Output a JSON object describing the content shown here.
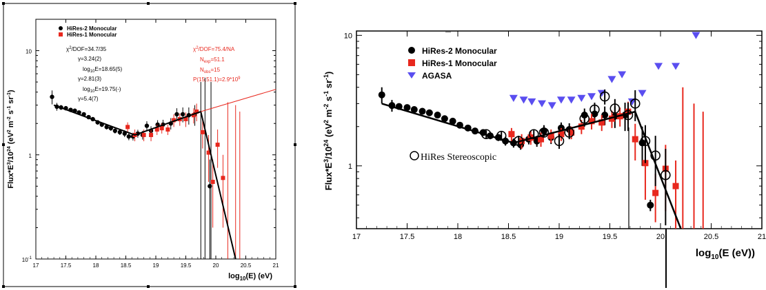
{
  "chart_data": [
    {
      "type": "scatter",
      "xlabel": "log10(E) (eV)",
      "ylabel": "Flux*E^3/10^24 (eV^2 m^-2 s^-1 sr^-1)",
      "x_log": false,
      "y_log": true,
      "xlim": [
        17,
        21
      ],
      "ylim": [
        0.1,
        20
      ],
      "x_ticks": [
        "17",
        "17.5",
        "18",
        "18.5",
        "19",
        "19.5",
        "20",
        "20.5",
        "21"
      ],
      "y_ticks": [
        {
          "v": 0.1,
          "label": "10^-1"
        },
        {
          "v": 1,
          "label": "1"
        },
        {
          "v": 10,
          "label": "10"
        }
      ],
      "legend": {
        "placement": "top-left",
        "entries": [
          "HiRes-2 Monocular",
          "HiRes-1 Monocular"
        ]
      },
      "annotations_black": [
        "χ²/DOF=34.7/35",
        "γ=3.24(2)",
        "log10E=18.65(5)",
        "γ=2.81(3)",
        "log10E=19.75(-)",
        "γ=5.4(7)"
      ],
      "annotations_red": [
        "χ²/DOF=75.4/NA",
        "Nexp=51.1",
        "Nobs=15",
        "P(15,51.1)=2.9*10^9"
      ],
      "series": [
        {
          "name": "HiRes-2 Monocular",
          "color": "#000000",
          "marker": "circle",
          "points": [
            [
              17.27,
              3.6,
              0.55
            ],
            [
              17.35,
              2.9,
              0.25
            ],
            [
              17.42,
              2.85,
              0.15
            ],
            [
              17.5,
              2.8,
              0.12
            ],
            [
              17.58,
              2.7,
              0.1
            ],
            [
              17.65,
              2.65,
              0.1
            ],
            [
              17.72,
              2.55,
              0.1
            ],
            [
              17.8,
              2.45,
              0.1
            ],
            [
              17.88,
              2.3,
              0.1
            ],
            [
              17.95,
              2.2,
              0.1
            ],
            [
              18.03,
              2.05,
              0.1
            ],
            [
              18.1,
              1.95,
              0.1
            ],
            [
              18.18,
              1.85,
              0.1
            ],
            [
              18.25,
              1.8,
              0.1
            ],
            [
              18.32,
              1.7,
              0.1
            ],
            [
              18.4,
              1.65,
              0.1
            ],
            [
              18.48,
              1.6,
              0.12
            ],
            [
              18.55,
              1.5,
              0.12
            ],
            [
              18.62,
              1.5,
              0.13
            ],
            [
              18.7,
              1.6,
              0.14
            ],
            [
              18.78,
              1.55,
              0.15
            ],
            [
              18.85,
              1.9,
              0.2
            ],
            [
              18.92,
              1.7,
              0.18
            ],
            [
              19.03,
              1.95,
              0.2
            ],
            [
              19.12,
              1.95,
              0.22
            ],
            [
              19.25,
              2.0,
              0.25
            ],
            [
              19.35,
              2.45,
              0.35
            ],
            [
              19.45,
              2.45,
              0.4
            ],
            [
              19.55,
              2.4,
              0.45
            ],
            [
              19.65,
              2.45,
              0.55
            ],
            [
              19.9,
              0.5,
              0.4
            ]
          ],
          "upper_limit_stems": [
            [
              19.75,
              5.0
            ],
            [
              19.82,
              5.5
            ],
            [
              19.92,
              5.0
            ]
          ]
        },
        {
          "name": "HiRes-1 Monocular",
          "color": "#e8281e",
          "marker": "square",
          "points": [
            [
              18.53,
              1.85,
              0.2
            ],
            [
              18.65,
              1.55,
              0.2
            ],
            [
              18.8,
              1.55,
              0.2
            ],
            [
              18.92,
              1.55,
              0.2
            ],
            [
              19.02,
              1.75,
              0.2
            ],
            [
              19.1,
              1.8,
              0.2
            ],
            [
              19.2,
              1.75,
              0.2
            ],
            [
              19.3,
              2.15,
              0.3
            ],
            [
              19.4,
              2.2,
              0.3
            ],
            [
              19.5,
              2.2,
              0.35
            ],
            [
              19.63,
              2.4,
              0.4
            ],
            [
              19.68,
              2.6,
              0.5
            ],
            [
              19.78,
              1.65,
              0.5
            ],
            [
              19.88,
              1.05,
              0.5
            ],
            [
              19.95,
              0.55,
              0.35
            ],
            [
              20.03,
              1.25,
              0.5
            ],
            [
              20.12,
              0.6,
              0.4
            ]
          ],
          "upper_limit_stems": [
            [
              20.2,
              3.2
            ],
            [
              20.33,
              3.0
            ],
            [
              20.4,
              2.6
            ]
          ]
        },
        {
          "name": "Fit",
          "color": "#000000",
          "line": [
            [
              17.3,
              3.0
            ],
            [
              18.65,
              1.55
            ],
            [
              19.75,
              2.6
            ],
            [
              20.33,
              0.1
            ]
          ]
        },
        {
          "name": "Extrapolation",
          "color": "#e8281e",
          "line": [
            [
              19.75,
              2.6
            ],
            [
              21.0,
              4.25
            ]
          ]
        }
      ]
    },
    {
      "type": "scatter",
      "xlabel": "log10(E (eV))",
      "ylabel": "Flux*E^3/10^24 (eV^2 m^-2 s^-1 sr^-1)",
      "y_log": true,
      "xlim": [
        17,
        21
      ],
      "ylim": [
        0.33,
        10.8
      ],
      "x_ticks": [
        "17",
        "17.5",
        "18",
        "18.5",
        "19",
        "19.5",
        "20",
        "20.5",
        "21"
      ],
      "y_ticks": [
        {
          "v": 1,
          "label": "1"
        },
        {
          "v": 10,
          "label": "10"
        }
      ],
      "legend": {
        "placement": "top-left",
        "entries": [
          "HiRes-2 Monocular",
          "HiRes-1 Monocular",
          "AGASA"
        ]
      },
      "extra_legend": "HiRes Stereoscopic",
      "series": [
        {
          "name": "HiRes-2 Monocular",
          "color": "#000000",
          "marker": "circle",
          "points": [
            [
              17.25,
              3.5,
              0.5
            ],
            [
              17.35,
              2.9,
              0.3
            ],
            [
              17.42,
              2.85,
              0.15
            ],
            [
              17.5,
              2.8,
              0.12
            ],
            [
              17.57,
              2.7,
              0.1
            ],
            [
              17.65,
              2.62,
              0.1
            ],
            [
              17.72,
              2.55,
              0.1
            ],
            [
              17.8,
              2.45,
              0.1
            ],
            [
              17.87,
              2.3,
              0.1
            ],
            [
              17.95,
              2.2,
              0.1
            ],
            [
              18.02,
              2.05,
              0.1
            ],
            [
              18.1,
              1.95,
              0.1
            ],
            [
              18.17,
              1.85,
              0.1
            ],
            [
              18.25,
              1.8,
              0.1
            ],
            [
              18.32,
              1.7,
              0.1
            ],
            [
              18.4,
              1.65,
              0.1
            ],
            [
              18.47,
              1.55,
              0.12
            ],
            [
              18.55,
              1.5,
              0.12
            ],
            [
              18.62,
              1.45,
              0.12
            ],
            [
              18.7,
              1.6,
              0.14
            ],
            [
              18.78,
              1.55,
              0.15
            ],
            [
              18.85,
              1.85,
              0.2
            ],
            [
              18.92,
              1.65,
              0.18
            ],
            [
              19.02,
              1.95,
              0.2
            ],
            [
              19.1,
              1.9,
              0.22
            ],
            [
              19.25,
              2.45,
              0.3
            ],
            [
              19.35,
              2.5,
              0.35
            ],
            [
              19.45,
              2.45,
              0.4
            ],
            [
              19.55,
              2.4,
              0.45
            ],
            [
              19.65,
              2.45,
              0.6
            ],
            [
              19.82,
              1.5,
              0.5
            ],
            [
              19.9,
              0.5,
              0.05
            ]
          ]
        },
        {
          "name": "HiRes-1 Monocular",
          "color": "#e8281e",
          "marker": "square",
          "points": [
            [
              18.53,
              1.75,
              0.2
            ],
            [
              18.63,
              1.55,
              0.2
            ],
            [
              18.72,
              1.65,
              0.2
            ],
            [
              18.82,
              1.6,
              0.2
            ],
            [
              18.92,
              1.7,
              0.2
            ],
            [
              19.02,
              1.75,
              0.2
            ],
            [
              19.12,
              1.8,
              0.2
            ],
            [
              19.22,
              2.0,
              0.25
            ],
            [
              19.32,
              2.2,
              0.3
            ],
            [
              19.42,
              2.15,
              0.3
            ],
            [
              19.52,
              2.3,
              0.35
            ],
            [
              19.6,
              2.4,
              0.4
            ],
            [
              19.68,
              2.6,
              0.5
            ],
            [
              19.75,
              1.6,
              0.5
            ],
            [
              19.85,
              1.05,
              0.5
            ],
            [
              19.95,
              0.62,
              0.25
            ],
            [
              20.05,
              0.95,
              0.5
            ],
            [
              20.15,
              0.7,
              0.4
            ]
          ],
          "upper_limit_stems": [
            [
              20.22,
              4.0
            ],
            [
              20.33,
              3.0
            ],
            [
              20.42,
              2.6
            ]
          ]
        },
        {
          "name": "AGASA",
          "color": "#5a4ef0",
          "marker": "triangle-down",
          "points": [
            [
              18.55,
              3.3
            ],
            [
              18.65,
              3.2
            ],
            [
              18.73,
              3.1
            ],
            [
              18.83,
              3.0
            ],
            [
              18.93,
              2.9
            ],
            [
              19.02,
              3.2
            ],
            [
              19.12,
              3.2
            ],
            [
              19.22,
              3.3
            ],
            [
              19.32,
              3.4
            ],
            [
              19.42,
              3.6
            ],
            [
              19.52,
              4.6
            ],
            [
              19.62,
              5.0
            ],
            [
              19.72,
              3.1
            ],
            [
              19.82,
              3.6
            ],
            [
              19.98,
              5.8
            ],
            [
              20.15,
              5.8
            ],
            [
              20.35,
              10.0
            ]
          ]
        },
        {
          "name": "HiRes Stereoscopic",
          "color": "#000000",
          "marker": "open-circle",
          "points": [
            [
              18.28,
              1.75,
              0.12
            ],
            [
              18.43,
              1.7,
              0.12
            ],
            [
              18.6,
              1.55,
              0.15
            ],
            [
              18.75,
              1.75,
              0.15
            ],
            [
              18.85,
              1.8,
              0.15
            ],
            [
              19.0,
              1.55,
              0.2
            ],
            [
              19.1,
              1.8,
              0.2
            ],
            [
              19.25,
              2.3,
              0.3
            ],
            [
              19.35,
              2.7,
              0.35
            ],
            [
              19.45,
              3.4,
              0.45
            ],
            [
              19.55,
              2.75,
              0.5
            ],
            [
              19.68,
              2.45,
              0.6
            ],
            [
              19.75,
              3.0,
              0.8
            ],
            [
              19.85,
              1.55,
              0.5
            ],
            [
              19.95,
              1.2,
              0.5
            ],
            [
              20.05,
              0.85,
              0.5
            ]
          ]
        },
        {
          "name": "Fit",
          "color": "#000000",
          "line": [
            [
              17.25,
              3.0
            ],
            [
              18.55,
              1.5
            ],
            [
              19.75,
              2.6
            ],
            [
              20.2,
              0.33
            ]
          ]
        }
      ]
    }
  ]
}
